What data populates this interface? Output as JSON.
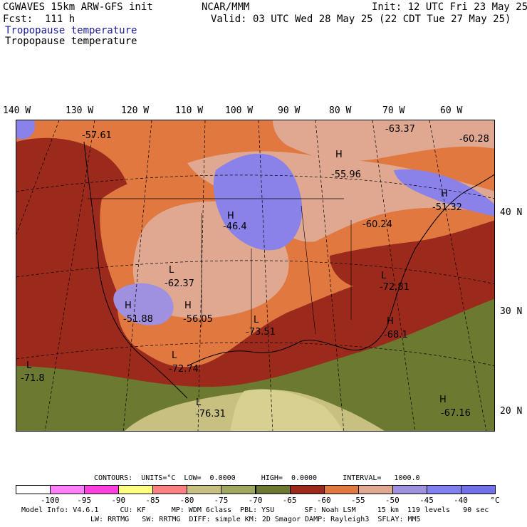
{
  "header": {
    "model_line": "CGWAVES 15km ARW-GFS init",
    "org": "NCAR/MMM",
    "init": "Init: 12 UTC Fri 23 May 25",
    "fcst": "Fcst:  111 h",
    "valid": "Valid: 03 UTC Wed 28 May 25 (22 CDT Tue 27 May 25)",
    "field_title_blue": "Tropopause temperature",
    "field_title_black": "Tropopause temperature"
  },
  "lon_labels": [
    "140 W",
    "130 W",
    "120 W",
    "110 W",
    "100 W",
    "90 W",
    "80 W",
    "70 W",
    "60 W"
  ],
  "lat_labels": [
    "40 N",
    "30 N",
    "20 N"
  ],
  "map_labels": [
    {
      "mark": "",
      "value": "-57.61"
    },
    {
      "mark": "",
      "value": "-63.37"
    },
    {
      "mark": "",
      "value": "-60.28"
    },
    {
      "mark": "H",
      "value": "-55.96"
    },
    {
      "mark": "H",
      "value": "-51.32"
    },
    {
      "mark": "H",
      "value": "-46.4"
    },
    {
      "mark": "",
      "value": "-60.24"
    },
    {
      "mark": "L",
      "value": "-62.37"
    },
    {
      "mark": "L",
      "value": "-72.81"
    },
    {
      "mark": "H",
      "value": "-51.88"
    },
    {
      "mark": "H",
      "value": "-56.05"
    },
    {
      "mark": "L",
      "value": "-73.51"
    },
    {
      "mark": "H",
      "value": "-68.1"
    },
    {
      "mark": "L",
      "value": "-72.74"
    },
    {
      "mark": "L",
      "value": "-71.8"
    },
    {
      "mark": "L",
      "value": "-76.31"
    },
    {
      "mark": "H",
      "value": "-67.16"
    }
  ],
  "contours_line": "CONTOURS:  UNITS=°C  LOW=  0.0000      HIGH=  0.0000      INTERVAL=   1000.0",
  "colorbar": {
    "colors": [
      "#ffffff",
      "#ff80ff",
      "#ff40e0",
      "#ffff80",
      "#ff8080",
      "#c8c080",
      "#a0a860",
      "#6b7a30",
      "#9c2a1c",
      "#e07840",
      "#e0a890",
      "#a090e0",
      "#8080f0",
      "#7070e8",
      "#7070f0"
    ],
    "labels": [
      "-100",
      "-95",
      "-90",
      "-85",
      "-80",
      "-75",
      "-70",
      "-65",
      "-60",
      "-55",
      "-50",
      "-45",
      "-40",
      "°C"
    ]
  },
  "footer": {
    "line1": "Model Info: V4.6.1     CU: KF      MP: WDM 6class  PBL: YSU       SF: Noah LSM     15 km  119 levels   90 sec",
    "line2": "LW: RRTMG   SW: RRTMG  DIFF: simple KM: 2D Smagor DAMP: Rayleigh3  SFLAY: MM5"
  }
}
